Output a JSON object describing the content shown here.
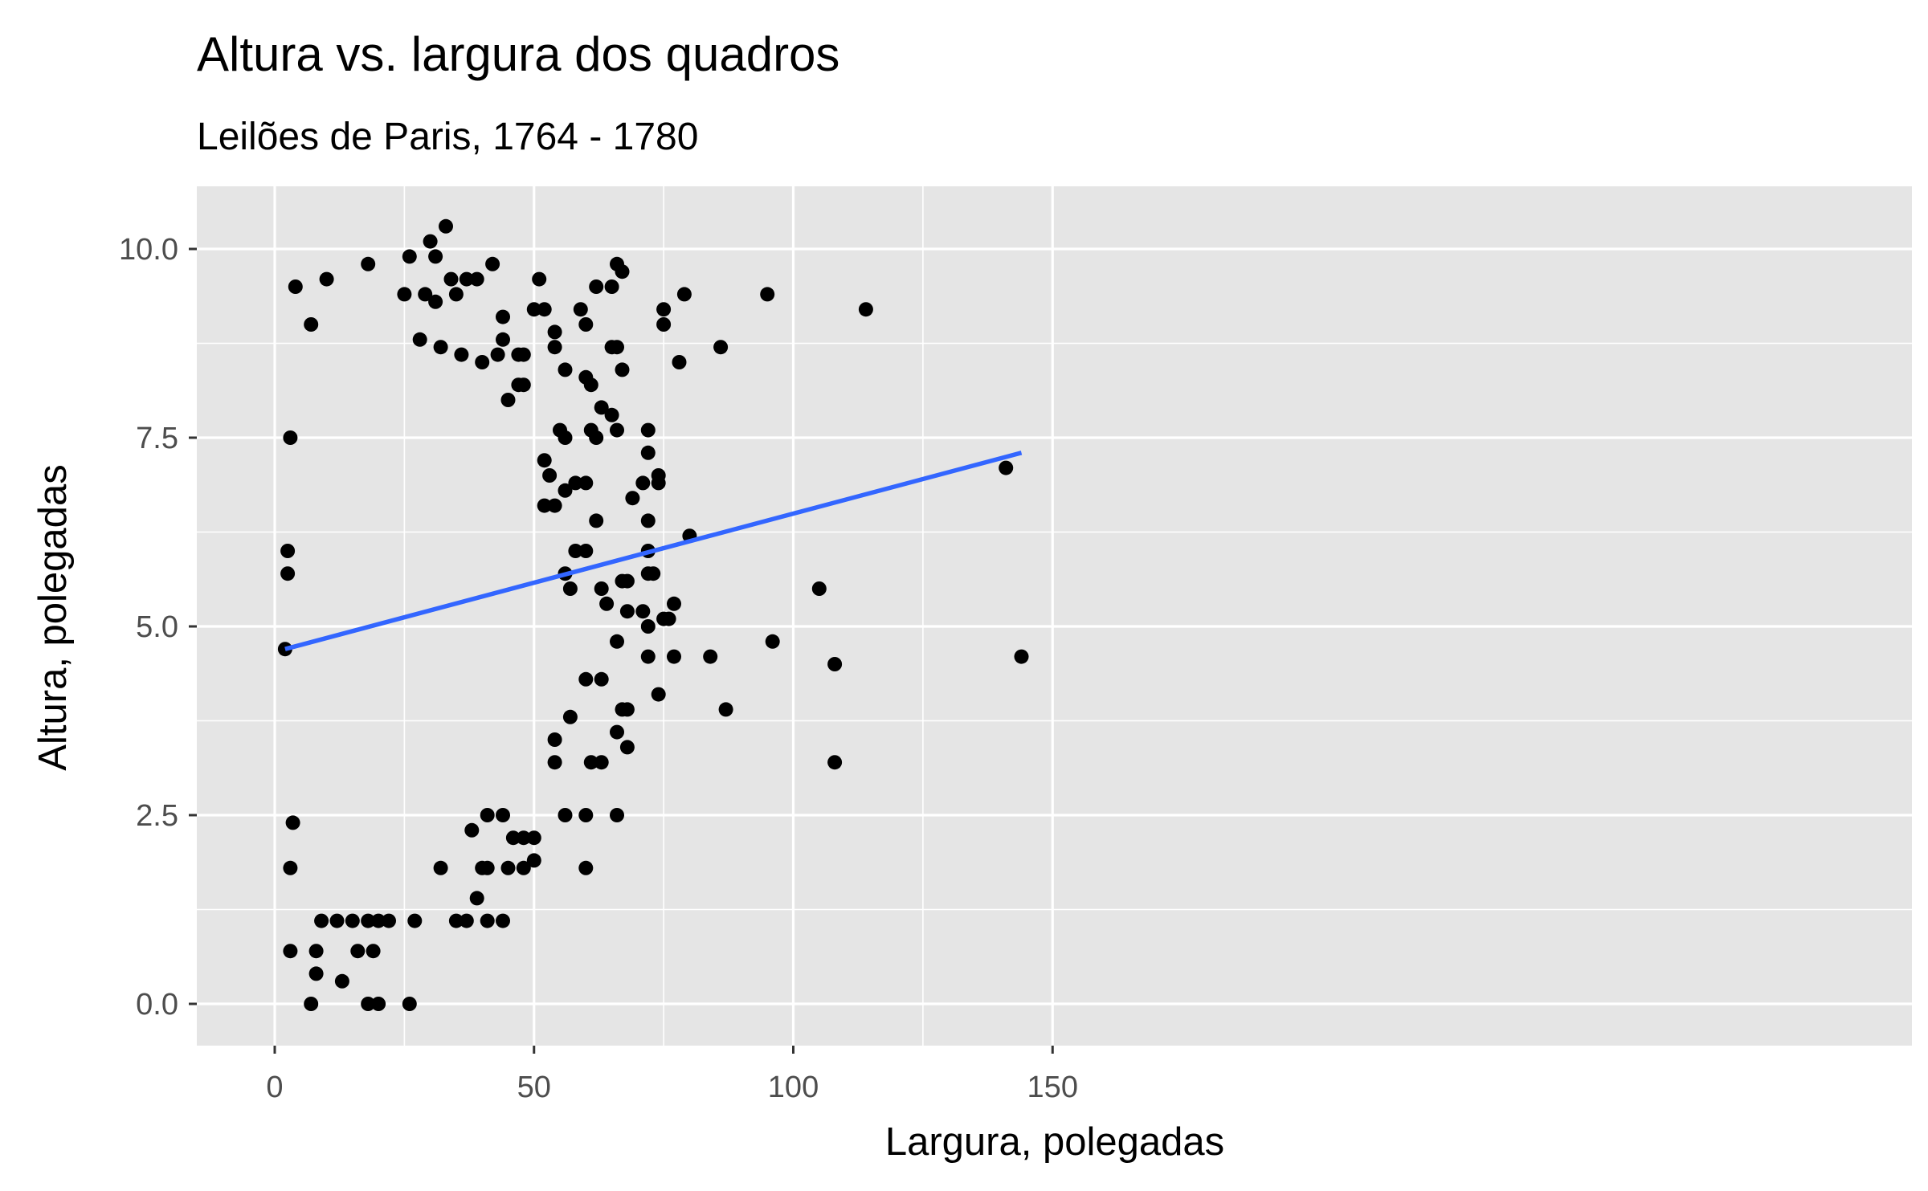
{
  "chart_data": {
    "type": "scatter",
    "title": "Altura vs. largura dos quadros",
    "subtitle": "Leilões de Paris, 1764 - 1780",
    "xlabel": "Largura, polegadas",
    "ylabel": "Altura, polegadas",
    "xlim": [
      -7.5,
      157.5
    ],
    "ylim": [
      -0.55,
      10.75
    ],
    "x_ticks": [
      0,
      50,
      100,
      150
    ],
    "x_tick_labels": [
      "0",
      "50",
      "100",
      "150"
    ],
    "y_ticks": [
      0,
      2.5,
      5,
      7.5,
      10
    ],
    "y_tick_labels": [
      "0.0",
      "2.5",
      "5.0",
      "7.5",
      "10.0"
    ],
    "grid": true,
    "legend": "none",
    "background": "#e5e5e5",
    "grid_color": "#ffffff",
    "point_color": "#000000",
    "trend_color": "#3366ff",
    "trend_line": {
      "method": "linear",
      "x": [
        2,
        144
      ],
      "y": [
        4.7,
        7.3
      ]
    },
    "points": [
      [
        2,
        4.7
      ],
      [
        2.5,
        6.0
      ],
      [
        2.5,
        5.7
      ],
      [
        3,
        0.7
      ],
      [
        3,
        7.5
      ],
      [
        3,
        1.8
      ],
      [
        3.5,
        2.4
      ],
      [
        4,
        9.5
      ],
      [
        7,
        9.0
      ],
      [
        8,
        0.4
      ],
      [
        8,
        0.7
      ],
      [
        7,
        0.0
      ],
      [
        13,
        0.3
      ],
      [
        16,
        0.7
      ],
      [
        18,
        0.0
      ],
      [
        19,
        0.7
      ],
      [
        20,
        0.0
      ],
      [
        26,
        0.0
      ],
      [
        9,
        1.1
      ],
      [
        12,
        1.1
      ],
      [
        15,
        1.1
      ],
      [
        18,
        1.1
      ],
      [
        20,
        1.1
      ],
      [
        22,
        1.1
      ],
      [
        27,
        1.1
      ],
      [
        35,
        1.1
      ],
      [
        37,
        1.1
      ],
      [
        41,
        1.1
      ],
      [
        44,
        1.1
      ],
      [
        39,
        1.4
      ],
      [
        41,
        1.8
      ],
      [
        45,
        1.8
      ],
      [
        48,
        1.8
      ],
      [
        32,
        1.8
      ],
      [
        40,
        1.8
      ],
      [
        50,
        1.9
      ],
      [
        60,
        1.8
      ],
      [
        56,
        2.5
      ],
      [
        60,
        2.5
      ],
      [
        66,
        2.5
      ],
      [
        41,
        2.5
      ],
      [
        44,
        2.5
      ],
      [
        46,
        2.2
      ],
      [
        48,
        2.2
      ],
      [
        38,
        2.3
      ],
      [
        50,
        2.2
      ],
      [
        54,
        3.2
      ],
      [
        61,
        3.2
      ],
      [
        63,
        3.2
      ],
      [
        66,
        3.6
      ],
      [
        68,
        3.4
      ],
      [
        54,
        3.5
      ],
      [
        57,
        3.8
      ],
      [
        60,
        4.3
      ],
      [
        63,
        4.3
      ],
      [
        66,
        4.8
      ],
      [
        67,
        3.9
      ],
      [
        68,
        3.9
      ],
      [
        72,
        4.6
      ],
      [
        74,
        4.1
      ],
      [
        77,
        4.6
      ],
      [
        84,
        4.6
      ],
      [
        87,
        3.9
      ],
      [
        96,
        4.8
      ],
      [
        108,
        4.5
      ],
      [
        108,
        3.2
      ],
      [
        144,
        4.6
      ],
      [
        105,
        5.5
      ],
      [
        141,
        7.1
      ],
      [
        80,
        6.2
      ],
      [
        72,
        6.0
      ],
      [
        72,
        6.4
      ],
      [
        74,
        6.9
      ],
      [
        74,
        7.0
      ],
      [
        71,
        6.9
      ],
      [
        69,
        6.7
      ],
      [
        72,
        7.3
      ],
      [
        72,
        7.6
      ],
      [
        65,
        7.8
      ],
      [
        66,
        7.6
      ],
      [
        63,
        7.9
      ],
      [
        62,
        7.5
      ],
      [
        61,
        7.6
      ],
      [
        60,
        8.3
      ],
      [
        61,
        8.2
      ],
      [
        65,
        8.7
      ],
      [
        66,
        8.7
      ],
      [
        67,
        8.4
      ],
      [
        56,
        8.4
      ],
      [
        54,
        8.7
      ],
      [
        54,
        8.9
      ],
      [
        59,
        9.2
      ],
      [
        60,
        9.0
      ],
      [
        62,
        9.5
      ],
      [
        65,
        9.5
      ],
      [
        66,
        9.8
      ],
      [
        67,
        9.7
      ],
      [
        75,
        9.2
      ],
      [
        75,
        9.0
      ],
      [
        79,
        9.4
      ],
      [
        78,
        8.5
      ],
      [
        86,
        8.7
      ],
      [
        95,
        9.4
      ],
      [
        114,
        9.2
      ],
      [
        77,
        5.3
      ],
      [
        75,
        5.1
      ],
      [
        72,
        5.0
      ],
      [
        71,
        5.2
      ],
      [
        68,
        5.2
      ],
      [
        67,
        5.6
      ],
      [
        68,
        5.6
      ],
      [
        72,
        5.7
      ],
      [
        73,
        5.7
      ],
      [
        76,
        5.1
      ],
      [
        64,
        5.3
      ],
      [
        63,
        5.5
      ],
      [
        60,
        6.0
      ],
      [
        58,
        6.0
      ],
      [
        57,
        5.5
      ],
      [
        56,
        5.7
      ],
      [
        56,
        6.8
      ],
      [
        58,
        6.9
      ],
      [
        60,
        6.9
      ],
      [
        62,
        6.4
      ],
      [
        56,
        7.5
      ],
      [
        55,
        7.6
      ],
      [
        52,
        7.2
      ],
      [
        53,
        7.0
      ],
      [
        54,
        6.6
      ],
      [
        52,
        6.6
      ],
      [
        30,
        10.1
      ],
      [
        33,
        10.3
      ],
      [
        31,
        9.9
      ],
      [
        26,
        9.9
      ],
      [
        18,
        9.8
      ],
      [
        10,
        9.6
      ],
      [
        42,
        9.8
      ],
      [
        37,
        9.6
      ],
      [
        39,
        9.6
      ],
      [
        34,
        9.6
      ],
      [
        35,
        9.4
      ],
      [
        31,
        9.3
      ],
      [
        29,
        9.4
      ],
      [
        25,
        9.4
      ],
      [
        51,
        9.6
      ],
      [
        50,
        9.2
      ],
      [
        52,
        9.2
      ],
      [
        47,
        8.6
      ],
      [
        48,
        8.6
      ],
      [
        44,
        9.1
      ],
      [
        44,
        8.8
      ],
      [
        43,
        8.6
      ],
      [
        40,
        8.5
      ],
      [
        36,
        8.6
      ],
      [
        32,
        8.7
      ],
      [
        28,
        8.8
      ],
      [
        47,
        8.2
      ],
      [
        48,
        8.2
      ],
      [
        45,
        8.0
      ]
    ]
  }
}
